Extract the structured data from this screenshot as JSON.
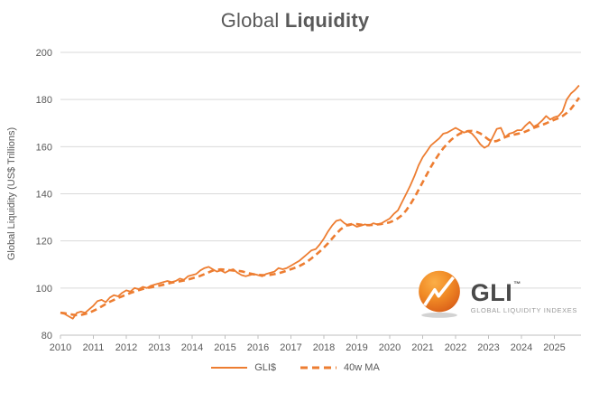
{
  "title": {
    "regular": "Global",
    "bold": "Liquidity"
  },
  "colors": {
    "series": "#ED7D31",
    "grid": "#D9D9D9",
    "axis": "#BFBFBF",
    "tick_text": "#595959",
    "title_text": "#595959"
  },
  "chart_data": {
    "type": "line",
    "title": "Global Liquidity",
    "xlabel": "",
    "ylabel": "Global Liquidity (US$ Trillions)",
    "ylim": [
      80,
      200
    ],
    "ytick_interval": 20,
    "yticks": [
      80,
      100,
      120,
      140,
      160,
      180,
      200
    ],
    "xticks": [
      2010,
      2011,
      2012,
      2013,
      2014,
      2015,
      2016,
      2017,
      2018,
      2019,
      2020,
      2021,
      2022,
      2023,
      2024,
      2025
    ],
    "grid": "horizontal",
    "legend_position": "bottom",
    "x_start": 2010.0,
    "x_step": 0.125,
    "series": [
      {
        "name": "GLI$",
        "style": "solid",
        "width": 1.8,
        "values": [
          89.5,
          89,
          88,
          87,
          89.5,
          90,
          89.5,
          91,
          92.5,
          94.5,
          95,
          94,
          96,
          97,
          96.5,
          98,
          99,
          98.5,
          100,
          99.5,
          100.5,
          100,
          101,
          101.5,
          102,
          102.5,
          103,
          102.5,
          103,
          104,
          103.5,
          105,
          105.5,
          106,
          107.5,
          108.5,
          109,
          108,
          107,
          107.5,
          106.5,
          107.5,
          108,
          106.5,
          105.5,
          105,
          105.5,
          106,
          105.5,
          105,
          106,
          106.5,
          107,
          108.5,
          108,
          108.5,
          109.5,
          110.5,
          111.5,
          113,
          114.5,
          116,
          116.5,
          118.5,
          121,
          124,
          126.5,
          128.5,
          129,
          127.5,
          126.5,
          127,
          126,
          126.5,
          127,
          126.5,
          127.5,
          127,
          127.5,
          128.5,
          129.5,
          131.5,
          133,
          136.5,
          140,
          143.5,
          147.5,
          152,
          155.5,
          158,
          160.5,
          162,
          163.5,
          165.5,
          166,
          167,
          168,
          167,
          166,
          166.5,
          165.5,
          163.5,
          161,
          159.5,
          160.5,
          164,
          167.5,
          168,
          164,
          165.5,
          166,
          167,
          167,
          169,
          170.5,
          168.5,
          169.5,
          171,
          173,
          171.5,
          172.5,
          173,
          175,
          180,
          182.5,
          184,
          186
        ]
      },
      {
        "name": "40w MA",
        "style": "dashed",
        "width": 2.6,
        "values": [
          89.5,
          89.3,
          89,
          88.7,
          88.5,
          88.6,
          89,
          89.5,
          90.3,
          91.2,
          92.2,
          93.2,
          94.2,
          95,
          95.8,
          96.5,
          97.2,
          97.9,
          98.5,
          99.1,
          99.6,
          100,
          100.3,
          100.7,
          101,
          101.4,
          101.9,
          102.3,
          102.6,
          102.9,
          103.2,
          103.6,
          104.1,
          104.6,
          105.2,
          105.9,
          106.7,
          107.4,
          107.8,
          107.9,
          107.8,
          107.6,
          107.4,
          107.3,
          107.1,
          106.7,
          106.2,
          105.8,
          105.6,
          105.5,
          105.5,
          105.6,
          105.9,
          106.3,
          106.8,
          107.4,
          108,
          108.6,
          109.3,
          110.2,
          111.3,
          112.6,
          114,
          115.5,
          117.2,
          119,
          121,
          123,
          124.8,
          126.1,
          126.9,
          127.2,
          127.1,
          126.9,
          126.7,
          126.7,
          126.8,
          127,
          127.2,
          127.5,
          127.9,
          128.6,
          129.6,
          131,
          133,
          135.5,
          138.4,
          141.6,
          144.9,
          148.2,
          151.4,
          154.3,
          157,
          159.3,
          161.3,
          163,
          164.4,
          165.5,
          166.2,
          166.6,
          166.7,
          166.4,
          165.6,
          164.4,
          163,
          162.2,
          162.4,
          163.2,
          164,
          164.6,
          165,
          165.4,
          165.8,
          166.4,
          167.2,
          168,
          168.6,
          169.2,
          169.9,
          170.7,
          171.4,
          172.1,
          173,
          174.3,
          176,
          178.2,
          180.8
        ]
      }
    ]
  },
  "legend": {
    "items": [
      {
        "label": "GLI$",
        "style": "solid"
      },
      {
        "label": "40w MA",
        "style": "dashed"
      }
    ]
  },
  "logo": {
    "text": "GLI",
    "tm": "™",
    "subtext": "GLOBAL LIQUIDITY INDEXES"
  }
}
